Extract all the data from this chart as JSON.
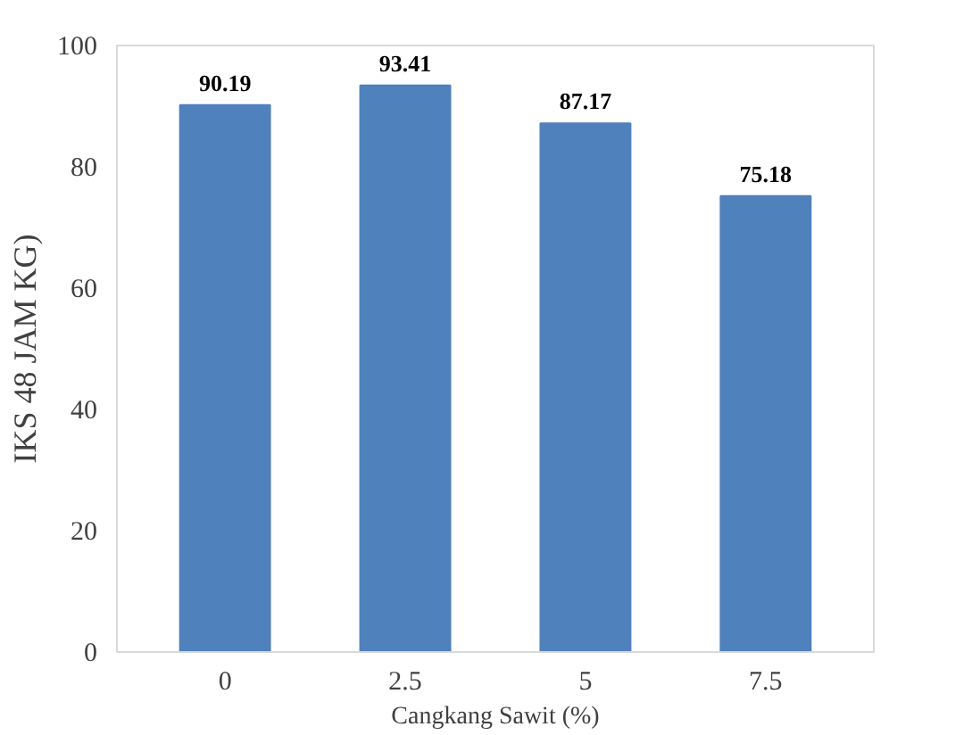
{
  "chart_data": {
    "type": "bar",
    "xlabel": "Cangkang Sawit (%)",
    "ylabel": "IKS 48 JAM KG)",
    "categories": [
      "0",
      "2.5",
      "5",
      "7.5"
    ],
    "values": [
      90.19,
      93.41,
      87.17,
      75.18
    ],
    "color": "#4f81bd",
    "ylim": [
      0,
      100
    ],
    "yticks": [
      0,
      20,
      40,
      60,
      80,
      100
    ],
    "grid": false,
    "data_labels": true
  }
}
